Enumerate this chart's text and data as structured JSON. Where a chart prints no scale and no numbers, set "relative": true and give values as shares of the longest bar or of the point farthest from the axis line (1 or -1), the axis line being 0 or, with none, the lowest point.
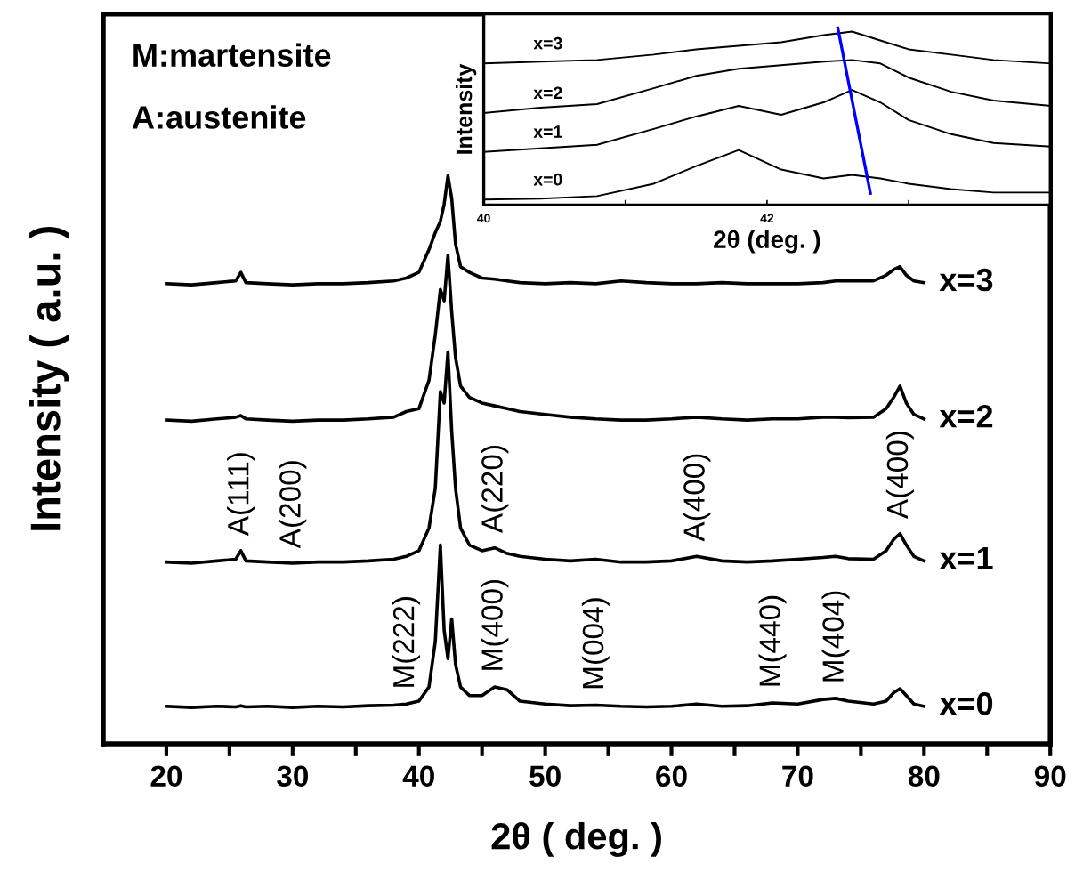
{
  "chart_data": [
    {
      "type": "line",
      "relative": true,
      "xlabel": "2θ ( deg. )",
      "ylabel": "Intensity ( a.u. )",
      "xlim": [
        15,
        90
      ],
      "xticks": [
        20,
        {
          "value": 25,
          "label": null
        },
        30,
        {
          "value": 35,
          "label": null
        },
        40,
        {
          "value": 45,
          "label": null
        },
        50,
        {
          "value": 55,
          "label": null
        },
        60,
        {
          "value": 65,
          "label": null
        },
        70,
        {
          "value": 75,
          "label": null
        },
        80,
        {
          "value": 85,
          "label": null
        },
        90
      ],
      "tick_labels": "x",
      "grid": false,
      "legend": false,
      "marker": "none",
      "line_style": "solid",
      "x": [
        20,
        22,
        24,
        25.5,
        25.9,
        26.3,
        28,
        30,
        32,
        34,
        36,
        38,
        39,
        40,
        40.8,
        41.3,
        41.7,
        42.0,
        42.3,
        42.6,
        42.9,
        43.3,
        44,
        45,
        46,
        47,
        48,
        50,
        52,
        54,
        56,
        58,
        60,
        62,
        64,
        66,
        68,
        70,
        72,
        73,
        74,
        76,
        77,
        77.6,
        78.1,
        78.6,
        79.2,
        80
      ],
      "series": [
        {
          "name": "x=0",
          "color": "#000000",
          "values": [
            0.066,
            0.064,
            0.066,
            0.065,
            0.067,
            0.065,
            0.066,
            0.064,
            0.066,
            0.065,
            0.067,
            0.068,
            0.07,
            0.075,
            0.1,
            0.18,
            0.35,
            0.2,
            0.15,
            0.22,
            0.14,
            0.1,
            0.085,
            0.085,
            0.1,
            0.095,
            0.075,
            0.07,
            0.067,
            0.068,
            0.066,
            0.065,
            0.066,
            0.07,
            0.066,
            0.067,
            0.072,
            0.07,
            0.078,
            0.08,
            0.075,
            0.07,
            0.075,
            0.09,
            0.097,
            0.085,
            0.07,
            0.066
          ]
        },
        {
          "name": "x=1",
          "color": "#000000",
          "values": [
            0.32,
            0.318,
            0.322,
            0.325,
            0.34,
            0.322,
            0.32,
            0.318,
            0.32,
            0.32,
            0.322,
            0.325,
            0.33,
            0.34,
            0.38,
            0.45,
            0.62,
            0.6,
            0.69,
            0.55,
            0.45,
            0.38,
            0.35,
            0.34,
            0.345,
            0.335,
            0.33,
            0.325,
            0.322,
            0.325,
            0.32,
            0.32,
            0.322,
            0.33,
            0.322,
            0.32,
            0.322,
            0.325,
            0.328,
            0.33,
            0.326,
            0.325,
            0.34,
            0.36,
            0.37,
            0.35,
            0.33,
            0.322
          ]
        },
        {
          "name": "x=2",
          "color": "#000000",
          "values": [
            0.57,
            0.568,
            0.572,
            0.575,
            0.578,
            0.572,
            0.57,
            0.568,
            0.57,
            0.57,
            0.572,
            0.575,
            0.585,
            0.59,
            0.64,
            0.72,
            0.8,
            0.78,
            0.86,
            0.76,
            0.68,
            0.63,
            0.61,
            0.6,
            0.595,
            0.59,
            0.585,
            0.58,
            0.575,
            0.572,
            0.57,
            0.57,
            0.572,
            0.575,
            0.572,
            0.57,
            0.572,
            0.572,
            0.575,
            0.575,
            0.574,
            0.575,
            0.59,
            0.61,
            0.63,
            0.6,
            0.58,
            0.572
          ]
        },
        {
          "name": "x=3",
          "color": "#000000",
          "values": [
            0.81,
            0.808,
            0.812,
            0.815,
            0.83,
            0.812,
            0.81,
            0.808,
            0.81,
            0.81,
            0.812,
            0.815,
            0.82,
            0.83,
            0.87,
            0.9,
            0.92,
            0.95,
            1.0,
            0.96,
            0.88,
            0.84,
            0.83,
            0.82,
            0.818,
            0.815,
            0.812,
            0.81,
            0.812,
            0.81,
            0.815,
            0.812,
            0.81,
            0.81,
            0.812,
            0.81,
            0.81,
            0.81,
            0.812,
            0.815,
            0.815,
            0.815,
            0.825,
            0.835,
            0.84,
            0.825,
            0.815,
            0.812
          ]
        }
      ],
      "annotations": [
        "M:martensite",
        "A:austenite",
        {
          "text": "A(111)",
          "x": 25.9,
          "y": 0.34
        },
        {
          "text": "A(200)",
          "x": 30,
          "y": 0.318
        },
        {
          "text": "A(220)",
          "x": 46,
          "y": 0.345
        },
        {
          "text": "A(400)",
          "x": 62,
          "y": 0.33
        },
        {
          "text": "A(400)",
          "x": 78.1,
          "y": 0.37
        },
        {
          "text": "M(222)",
          "x": 39,
          "y": 0.07
        },
        {
          "text": "M(400)",
          "x": 46,
          "y": 0.1
        },
        {
          "text": "M(004)",
          "x": 54,
          "y": 0.068
        },
        {
          "text": "M(440)",
          "x": 68,
          "y": 0.072
        },
        {
          "text": "M(404)",
          "x": 73,
          "y": 0.08
        }
      ]
    },
    {
      "type": "line",
      "relative": true,
      "xlabel": "2θ (deg. )",
      "ylabel": "Intensity",
      "xlim": [
        40,
        44
      ],
      "xticks": [
        40,
        {
          "value": 41,
          "label": null
        },
        42,
        {
          "value": 43,
          "label": null
        },
        {
          "value": 44,
          "label": null
        }
      ],
      "tick_labels": "x",
      "grid": false,
      "legend": false,
      "marker": "none",
      "line_style": "solid",
      "x": [
        40,
        40.4,
        40.8,
        41.2,
        41.5,
        41.8,
        42.1,
        42.4,
        42.6,
        42.8,
        43.0,
        43.3,
        43.6,
        44
      ],
      "series": [
        {
          "name": "x=0",
          "color": "#000000",
          "values": [
            0.03,
            0.035,
            0.05,
            0.12,
            0.22,
            0.31,
            0.2,
            0.15,
            0.17,
            0.15,
            0.12,
            0.09,
            0.07,
            0.07
          ]
        },
        {
          "name": "x=1",
          "color": "#000000",
          "values": [
            0.3,
            0.32,
            0.34,
            0.43,
            0.5,
            0.56,
            0.51,
            0.58,
            0.65,
            0.58,
            0.48,
            0.4,
            0.35,
            0.33
          ]
        },
        {
          "name": "x=2",
          "color": "#000000",
          "values": [
            0.52,
            0.55,
            0.57,
            0.66,
            0.73,
            0.77,
            0.79,
            0.81,
            0.82,
            0.8,
            0.72,
            0.64,
            0.59,
            0.56
          ]
        },
        {
          "name": "x=3",
          "color": "#000000",
          "values": [
            0.8,
            0.81,
            0.82,
            0.85,
            0.88,
            0.9,
            0.92,
            0.96,
            0.98,
            0.93,
            0.88,
            0.85,
            0.82,
            0.8
          ]
        },
        {
          "type": "line",
          "color": "#0000ff",
          "x": [
            42.5,
            42.73
          ],
          "values": [
            1.0,
            0.066
          ]
        }
      ]
    }
  ]
}
